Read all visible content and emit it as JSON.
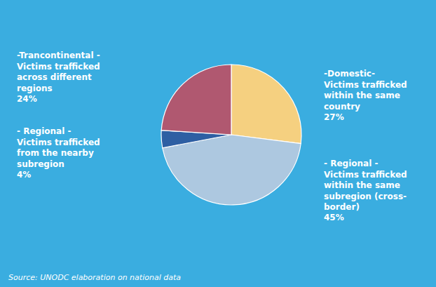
{
  "chart_data": {
    "type": "pie",
    "categories": [
      "-Domestic-\nVictims trafficked\nwithin the same\ncountry",
      "- Regional -\nVictims trafficked\nwithin the same\nsubregion (cross-\nborder)",
      "- Regional -\nVictims trafficked\nfrom the nearby\nsubregion",
      "-Trancontinental -\nVictims trafficked\nacross different\nregions"
    ],
    "values": [
      27,
      45,
      4,
      24
    ],
    "value_labels": [
      "27%",
      "45%",
      "4%",
      "24%"
    ],
    "data_labels": true,
    "colors": [
      "#f5d080",
      "#adc8e0",
      "#2e5fa3",
      "#b05870"
    ],
    "annotations": [
      "Source: UNODC elaboration on national data"
    ]
  }
}
